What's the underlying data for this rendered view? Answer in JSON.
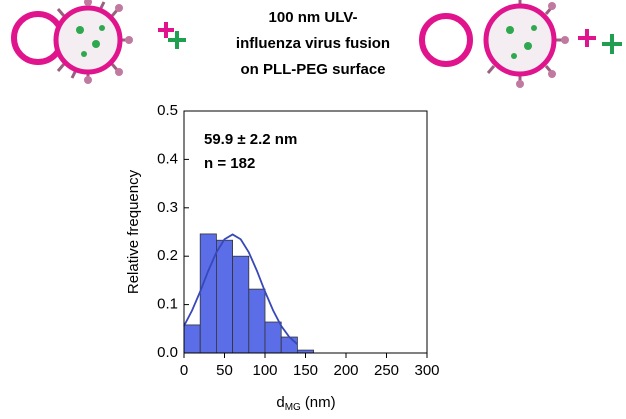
{
  "chart_data": {
    "type": "histogram",
    "title": [
      "100 nm ULV-",
      "influenza virus fusion",
      "on PLL-PEG surface"
    ],
    "annotations": [
      "59.9 ± 2.2 nm",
      "n = 182"
    ],
    "x_label": "d",
    "x_label_sub": "MG",
    "x_label_unit": "(nm)",
    "y_label": "Relative frequency",
    "bins": [
      0,
      20,
      40,
      60,
      80,
      100,
      120,
      140,
      160
    ],
    "values": [
      0.058,
      0.246,
      0.233,
      0.2,
      0.132,
      0.064,
      0.033,
      0.006
    ],
    "color": "#5b6ee8",
    "fit": {
      "color": "#3848b8",
      "x": [
        0,
        10,
        20,
        30,
        40,
        50,
        60,
        70,
        80,
        90,
        100,
        110,
        120,
        130,
        140
      ],
      "values": [
        0.056,
        0.088,
        0.127,
        0.17,
        0.208,
        0.235,
        0.245,
        0.235,
        0.208,
        0.17,
        0.127,
        0.088,
        0.056,
        0.033,
        0.018
      ]
    },
    "xlim": [
      0,
      300
    ],
    "xticks": [
      0,
      50,
      100,
      150,
      200,
      250,
      300
    ],
    "ylim": [
      0,
      0.5
    ],
    "yticks": [
      {
        "value": 0,
        "label": "0.0"
      },
      0.1,
      0.2,
      0.3,
      0.4,
      0.5
    ]
  }
}
